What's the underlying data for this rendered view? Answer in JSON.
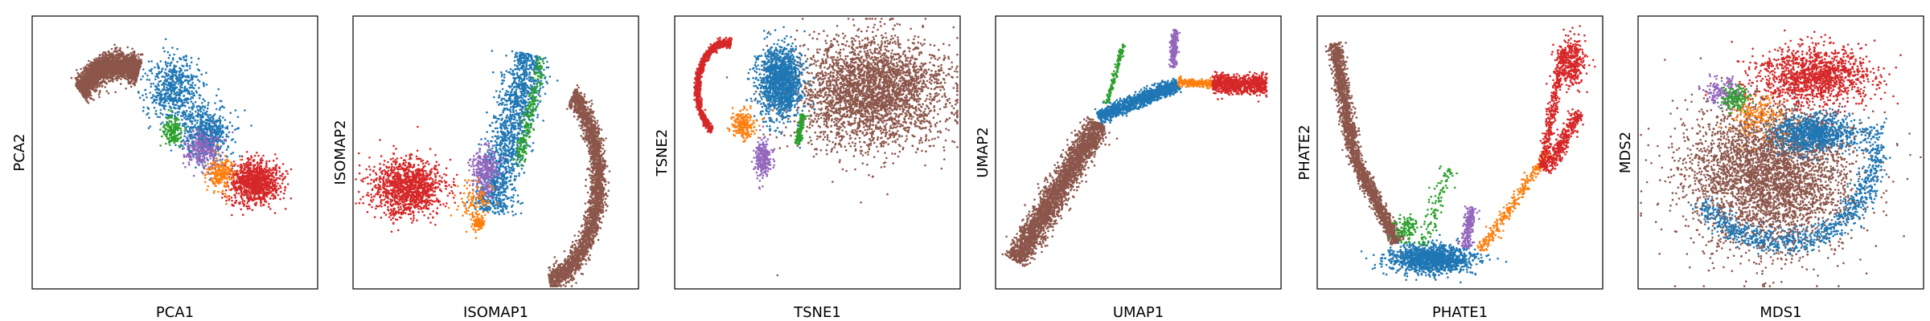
{
  "palette": {
    "blue": "#1f77b4",
    "orange": "#ff7f0e",
    "green": "#2ca02c",
    "red": "#d62728",
    "purple": "#9467bd",
    "brown": "#8c564b"
  },
  "chart_data": [
    {
      "type": "scatter",
      "xlabel": "PCA1",
      "ylabel": "PCA2",
      "ticks": false,
      "grid": false,
      "legend": "none",
      "series": [
        {
          "color": "brown",
          "n": 2600,
          "clusters": [
            {
              "shape": "arc",
              "cx": 0.3,
              "cy": 0.48,
              "rx": 0.18,
              "ry": 0.3,
              "a0": 1.15,
              "a1": 2.4,
              "thick": 0.08
            }
          ]
        },
        {
          "color": "blue",
          "n": 1200,
          "clusters": [
            {
              "shape": "blob",
              "cx": 0.5,
              "cy": 0.27,
              "rx": 0.1,
              "ry": 0.12
            },
            {
              "shape": "blob",
              "cx": 0.61,
              "cy": 0.43,
              "rx": 0.08,
              "ry": 0.09
            }
          ]
        },
        {
          "color": "purple",
          "n": 260,
          "clusters": [
            {
              "shape": "blob",
              "cx": 0.6,
              "cy": 0.49,
              "rx": 0.06,
              "ry": 0.07
            }
          ]
        },
        {
          "color": "red",
          "n": 1000,
          "clusters": [
            {
              "shape": "blob",
              "cx": 0.78,
              "cy": 0.61,
              "rx": 0.09,
              "ry": 0.08
            }
          ]
        },
        {
          "color": "orange",
          "n": 220,
          "clusters": [
            {
              "shape": "blob",
              "cx": 0.66,
              "cy": 0.58,
              "rx": 0.05,
              "ry": 0.06
            }
          ]
        },
        {
          "color": "green",
          "n": 160,
          "clusters": [
            {
              "shape": "blob",
              "cx": 0.49,
              "cy": 0.42,
              "rx": 0.03,
              "ry": 0.05
            }
          ]
        }
      ]
    },
    {
      "type": "scatter",
      "xlabel": "ISOMAP1",
      "ylabel": "ISOMAP2",
      "ticks": false,
      "grid": false,
      "legend": "none",
      "series": [
        {
          "color": "brown",
          "n": 2600,
          "clusters": [
            {
              "shape": "arc",
              "cx": 0.64,
              "cy": 0.6,
              "rx": 0.22,
              "ry": 0.38,
              "a0": -1.35,
              "a1": 0.95,
              "thick": 0.06
            }
          ]
        },
        {
          "color": "red",
          "n": 1200,
          "clusters": [
            {
              "shape": "blob",
              "cx": 0.19,
              "cy": 0.63,
              "rx": 0.12,
              "ry": 0.1
            }
          ]
        },
        {
          "color": "blue",
          "n": 1500,
          "clusters": [
            {
              "shape": "band",
              "x0": 0.48,
              "y0": 0.72,
              "x1": 0.62,
              "y1": 0.14,
              "w": 0.07
            }
          ]
        },
        {
          "color": "purple",
          "n": 300,
          "clusters": [
            {
              "shape": "blob",
              "cx": 0.46,
              "cy": 0.57,
              "rx": 0.05,
              "ry": 0.09
            }
          ]
        },
        {
          "color": "orange",
          "n": 220,
          "clusters": [
            {
              "shape": "blob",
              "cx": 0.43,
              "cy": 0.68,
              "rx": 0.06,
              "ry": 0.07
            },
            {
              "shape": "blob",
              "cx": 0.44,
              "cy": 0.76,
              "rx": 0.02,
              "ry": 0.02
            }
          ]
        },
        {
          "color": "green",
          "n": 220,
          "clusters": [
            {
              "shape": "band",
              "x0": 0.58,
              "y0": 0.55,
              "x1": 0.66,
              "y1": 0.15,
              "w": 0.02
            }
          ]
        }
      ]
    },
    {
      "type": "scatter",
      "xlabel": "TSNE1",
      "ylabel": "TSNE2",
      "ticks": false,
      "grid": false,
      "legend": "none",
      "series": [
        {
          "color": "brown",
          "n": 3200,
          "clusters": [
            {
              "shape": "blob",
              "cx": 0.69,
              "cy": 0.28,
              "rx": 0.26,
              "ry": 0.2
            }
          ]
        },
        {
          "color": "blue",
          "n": 1400,
          "clusters": [
            {
              "shape": "blob",
              "cx": 0.37,
              "cy": 0.24,
              "rx": 0.08,
              "ry": 0.13
            }
          ]
        },
        {
          "color": "red",
          "n": 1100,
          "clusters": [
            {
              "shape": "arc",
              "cx": 0.18,
              "cy": 0.27,
              "rx": 0.1,
              "ry": 0.17,
              "a0": 1.4,
              "a1": 4.2,
              "thick": 0.045
            }
          ]
        },
        {
          "color": "orange",
          "n": 220,
          "clusters": [
            {
              "shape": "blob",
              "cx": 0.24,
              "cy": 0.4,
              "rx": 0.04,
              "ry": 0.05
            }
          ]
        },
        {
          "color": "purple",
          "n": 260,
          "clusters": [
            {
              "shape": "blob",
              "cx": 0.31,
              "cy": 0.52,
              "rx": 0.03,
              "ry": 0.07
            }
          ]
        },
        {
          "color": "green",
          "n": 160,
          "clusters": [
            {
              "shape": "band",
              "x0": 0.43,
              "y0": 0.47,
              "x1": 0.45,
              "y1": 0.36,
              "w": 0.012
            }
          ]
        },
        {
          "color": "brown",
          "n": 1,
          "clusters": [
            {
              "shape": "point",
              "x": 0.36,
              "y": 0.95
            }
          ]
        }
      ]
    },
    {
      "type": "scatter",
      "xlabel": "UMAP1",
      "ylabel": "UMAP2",
      "ticks": false,
      "grid": false,
      "legend": "none",
      "series": [
        {
          "color": "brown",
          "n": 2800,
          "clusters": [
            {
              "shape": "band",
              "x0": 0.07,
              "y0": 0.9,
              "x1": 0.36,
              "y1": 0.39,
              "w": 0.045
            }
          ]
        },
        {
          "color": "blue",
          "n": 1300,
          "clusters": [
            {
              "shape": "band",
              "x0": 0.36,
              "y0": 0.37,
              "x1": 0.64,
              "y1": 0.25,
              "w": 0.025
            }
          ]
        },
        {
          "color": "orange",
          "n": 220,
          "clusters": [
            {
              "shape": "band",
              "x0": 0.64,
              "y0": 0.24,
              "x1": 0.76,
              "y1": 0.25,
              "w": 0.015
            }
          ]
        },
        {
          "color": "red",
          "n": 800,
          "clusters": [
            {
              "shape": "band",
              "x0": 0.76,
              "y0": 0.25,
              "x1": 0.95,
              "y1": 0.25,
              "w": 0.035
            }
          ]
        },
        {
          "color": "purple",
          "n": 200,
          "clusters": [
            {
              "shape": "band",
              "x0": 0.62,
              "y0": 0.19,
              "x1": 0.63,
              "y1": 0.05,
              "w": 0.012
            }
          ]
        },
        {
          "color": "green",
          "n": 150,
          "clusters": [
            {
              "shape": "band",
              "x0": 0.39,
              "y0": 0.32,
              "x1": 0.45,
              "y1": 0.1,
              "w": 0.008
            }
          ]
        }
      ]
    },
    {
      "type": "scatter",
      "xlabel": "PHATE1",
      "ylabel": "PHATE2",
      "ticks": false,
      "grid": false,
      "legend": "none",
      "series": [
        {
          "color": "brown",
          "n": 2200,
          "clusters": [
            {
              "shape": "band",
              "x0": 0.06,
              "y0": 0.1,
              "x1": 0.13,
              "y1": 0.52,
              "w": 0.025
            },
            {
              "shape": "band",
              "x0": 0.13,
              "y0": 0.52,
              "x1": 0.28,
              "y1": 0.83,
              "w": 0.022
            }
          ]
        },
        {
          "color": "blue",
          "n": 1400,
          "clusters": [
            {
              "shape": "blob",
              "cx": 0.4,
              "cy": 0.89,
              "rx": 0.14,
              "ry": 0.05
            }
          ]
        },
        {
          "color": "green",
          "n": 220,
          "clusters": [
            {
              "shape": "band",
              "x0": 0.37,
              "y0": 0.84,
              "x1": 0.46,
              "y1": 0.56,
              "w": 0.03
            },
            {
              "shape": "blob",
              "cx": 0.31,
              "cy": 0.78,
              "rx": 0.04,
              "ry": 0.05
            }
          ]
        },
        {
          "color": "purple",
          "n": 220,
          "clusters": [
            {
              "shape": "band",
              "x0": 0.52,
              "y0": 0.85,
              "x1": 0.54,
              "y1": 0.7,
              "w": 0.02
            }
          ]
        },
        {
          "color": "orange",
          "n": 300,
          "clusters": [
            {
              "shape": "band",
              "x0": 0.57,
              "y0": 0.86,
              "x1": 0.81,
              "y1": 0.5,
              "w": 0.02
            }
          ]
        },
        {
          "color": "red",
          "n": 1100,
          "clusters": [
            {
              "shape": "band",
              "x0": 0.79,
              "y0": 0.56,
              "x1": 0.86,
              "y1": 0.12,
              "w": 0.018
            },
            {
              "shape": "band",
              "x0": 0.8,
              "y0": 0.57,
              "x1": 0.92,
              "y1": 0.35,
              "w": 0.025
            },
            {
              "shape": "blob",
              "cx": 0.89,
              "cy": 0.17,
              "rx": 0.05,
              "ry": 0.09
            }
          ]
        }
      ]
    },
    {
      "type": "scatter",
      "xlabel": "MDS1",
      "ylabel": "MDS2",
      "ticks": false,
      "grid": false,
      "legend": "none",
      "series": [
        {
          "color": "brown",
          "n": 3800,
          "clusters": [
            {
              "shape": "blob",
              "cx": 0.46,
              "cy": 0.58,
              "rx": 0.29,
              "ry": 0.27
            }
          ]
        },
        {
          "color": "blue",
          "n": 1800,
          "clusters": [
            {
              "shape": "arc",
              "cx": 0.5,
              "cy": 0.5,
              "rx": 0.33,
              "ry": 0.33,
              "a0": -2.6,
              "a1": 0.3,
              "thick": 0.07
            },
            {
              "shape": "blob",
              "cx": 0.62,
              "cy": 0.43,
              "rx": 0.14,
              "ry": 0.07
            }
          ]
        },
        {
          "color": "red",
          "n": 1300,
          "clusters": [
            {
              "shape": "blob",
              "cx": 0.62,
              "cy": 0.22,
              "rx": 0.2,
              "ry": 0.1
            }
          ]
        },
        {
          "color": "orange",
          "n": 160,
          "clusters": [
            {
              "shape": "blob",
              "cx": 0.42,
              "cy": 0.36,
              "rx": 0.1,
              "ry": 0.08
            }
          ]
        },
        {
          "color": "purple",
          "n": 160,
          "clusters": [
            {
              "shape": "blob",
              "cx": 0.3,
              "cy": 0.28,
              "rx": 0.06,
              "ry": 0.05
            }
          ]
        },
        {
          "color": "green",
          "n": 140,
          "clusters": [
            {
              "shape": "blob",
              "cx": 0.34,
              "cy": 0.3,
              "rx": 0.05,
              "ry": 0.05
            }
          ]
        }
      ]
    }
  ]
}
